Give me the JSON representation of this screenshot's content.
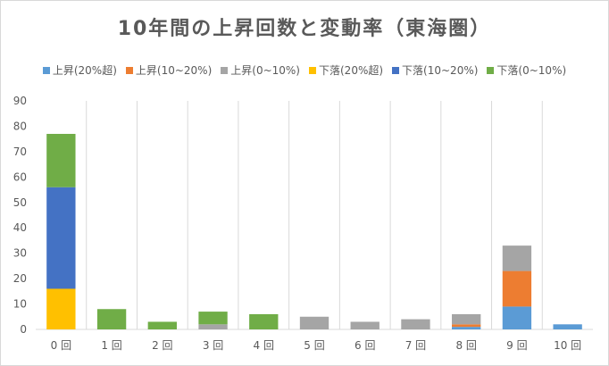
{
  "chart_data": {
    "type": "bar",
    "stacked": true,
    "title": "10年間の上昇回数と変動率（東海圏）",
    "xlabel": "",
    "ylabel": "",
    "ylim": [
      0,
      90
    ],
    "yticks": [
      0,
      10,
      20,
      30,
      40,
      50,
      60,
      70,
      80,
      90
    ],
    "grid": "vertical",
    "legend_position": "top",
    "categories": [
      "0 回",
      "1 回",
      "2 回",
      "3 回",
      "4 回",
      "5 回",
      "6 回",
      "7 回",
      "8 回",
      "9 回",
      "10 回"
    ],
    "series": [
      {
        "name": "上昇(20%超)",
        "color": "#5B9BD5",
        "values": [
          0,
          0,
          0,
          0,
          0,
          0,
          0,
          0,
          1,
          9,
          2
        ]
      },
      {
        "name": "上昇(10~20%)",
        "color": "#ED7D31",
        "values": [
          0,
          0,
          0,
          0,
          0,
          0,
          0,
          0,
          1,
          14,
          0
        ]
      },
      {
        "name": "上昇(0~10%)",
        "color": "#A5A5A5",
        "values": [
          0,
          0,
          0,
          2,
          0,
          5,
          3,
          4,
          4,
          10,
          0
        ]
      },
      {
        "name": "下落(20%超)",
        "color": "#FFC000",
        "values": [
          16,
          0,
          0,
          0,
          0,
          0,
          0,
          0,
          0,
          0,
          0
        ]
      },
      {
        "name": "下落(10~20%)",
        "color": "#4472C4",
        "values": [
          40,
          0,
          0,
          0,
          0,
          0,
          0,
          0,
          0,
          0,
          0
        ]
      },
      {
        "name": "下落(0~10%)",
        "color": "#70AD47",
        "values": [
          21,
          8,
          3,
          5,
          6,
          0,
          0,
          0,
          0,
          0,
          0
        ]
      }
    ]
  }
}
